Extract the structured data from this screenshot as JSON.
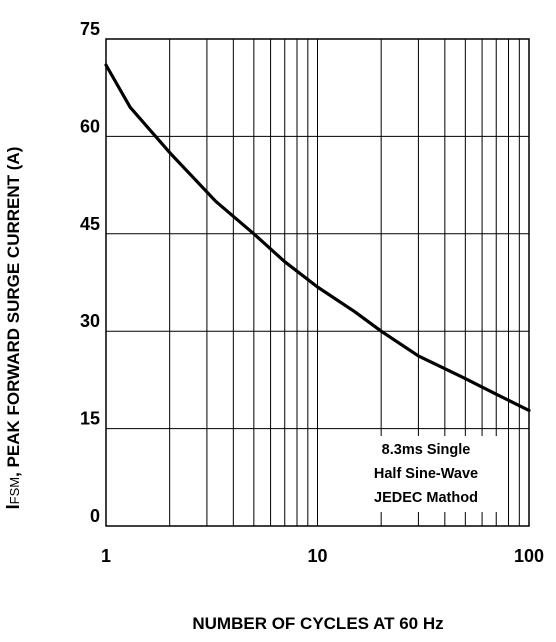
{
  "chart_data": {
    "type": "line",
    "title": "",
    "xlabel": "NUMBER OF CYCLES AT 60 Hz",
    "ylabel_prefix": "I",
    "ylabel_subscript": "FSM",
    "ylabel_rest": ", PEAK FORWARD SURGE CURRENT (A)",
    "xscale": "log",
    "xlim": [
      1,
      100
    ],
    "ylim": [
      0,
      75
    ],
    "xticks": [
      1,
      10,
      100
    ],
    "xtick_labels": [
      "1",
      "10",
      "100"
    ],
    "yticks": [
      0,
      15,
      30,
      45,
      60,
      75
    ],
    "ytick_labels": [
      "0",
      "15",
      "30",
      "45",
      "60",
      "75"
    ],
    "grid": true,
    "annotation": [
      "8.3ms Single",
      "Half Sine-Wave",
      "JEDEC Mathod"
    ],
    "series": [
      {
        "x": [
          1,
          1.3,
          2,
          3.3,
          5,
          7,
          10,
          15,
          20,
          30,
          50,
          70,
          100
        ],
        "y": [
          71,
          64.5,
          57.5,
          50,
          45,
          40.7,
          36.8,
          33,
          30,
          26.2,
          22.7,
          20.3,
          17.8
        ]
      }
    ],
    "line_color": "#000000"
  }
}
